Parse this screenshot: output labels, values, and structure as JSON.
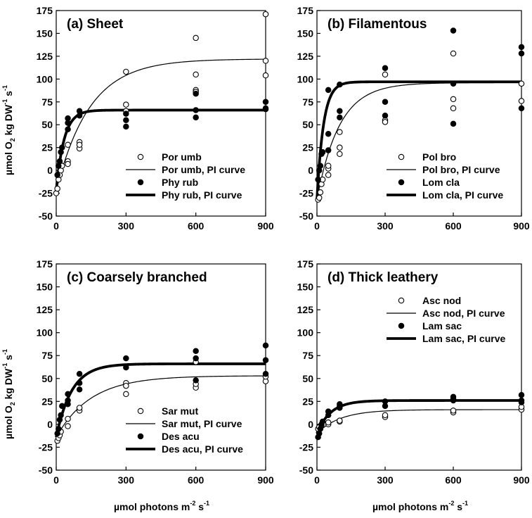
{
  "figure": {
    "ylabel": {
      "pre": "µmol O",
      "sub": "2",
      "mid": " kg DW",
      "sup1": "-1",
      "gap": " s",
      "sup2": "-1"
    },
    "xlabel": {
      "pre": "µmol photons m",
      "sup1": "-2",
      "gap": " s",
      "sup2": "-1"
    }
  },
  "chart_data": [
    {
      "type": "scatter",
      "title": "(a) Sheet",
      "xlim": [
        0,
        900
      ],
      "ylim": [
        -50,
        175
      ],
      "xticks": [
        0,
        300,
        600,
        900
      ],
      "yticks": [
        -50,
        -25,
        0,
        25,
        50,
        75,
        100,
        125,
        150,
        175
      ],
      "legend_position": "bottom-right",
      "series": [
        {
          "name": "Por umb",
          "kind": "points",
          "marker": "open",
          "points": [
            [
              0,
              -25
            ],
            [
              5,
              -20
            ],
            [
              10,
              -10
            ],
            [
              15,
              -5
            ],
            [
              20,
              0
            ],
            [
              25,
              5
            ],
            [
              50,
              10
            ],
            [
              50,
              7
            ],
            [
              50,
              28
            ],
            [
              100,
              24
            ],
            [
              100,
              31
            ],
            [
              100,
              28
            ],
            [
              300,
              108
            ],
            [
              300,
              72
            ],
            [
              300,
              65
            ],
            [
              600,
              145
            ],
            [
              600,
              105
            ],
            [
              600,
              88
            ],
            [
              600,
              86
            ],
            [
              900,
              171
            ],
            [
              900,
              120
            ],
            [
              900,
              104
            ]
          ]
        },
        {
          "name": "Por umb, PI curve",
          "kind": "curve",
          "pmax": 122,
          "rd": -22,
          "alpha": 1.0
        },
        {
          "name": "Phy rub",
          "kind": "points",
          "marker": "filled",
          "points": [
            [
              5,
              -5
            ],
            [
              10,
              5
            ],
            [
              15,
              10
            ],
            [
              20,
              20
            ],
            [
              25,
              25
            ],
            [
              50,
              45
            ],
            [
              50,
              52
            ],
            [
              50,
              57
            ],
            [
              100,
              65
            ],
            [
              100,
              60
            ],
            [
              300,
              48
            ],
            [
              300,
              55
            ],
            [
              300,
              62
            ],
            [
              600,
              84
            ],
            [
              600,
              66
            ],
            [
              600,
              58
            ],
            [
              900,
              68
            ],
            [
              900,
              75
            ],
            [
              900,
              67
            ]
          ]
        },
        {
          "name": "Phy rub, PI curve",
          "kind": "curve",
          "pmax": 66,
          "rd": -22,
          "alpha": 2.6
        }
      ]
    },
    {
      "type": "scatter",
      "title": "(b) Filamentous",
      "xlim": [
        0,
        900
      ],
      "ylim": [
        -50,
        175
      ],
      "xticks": [
        0,
        300,
        600,
        900
      ],
      "yticks": [
        -50,
        -25,
        0,
        25,
        50,
        75,
        100,
        125,
        150,
        175
      ],
      "legend_position": "bottom-right",
      "series": [
        {
          "name": "Pol bro",
          "kind": "points",
          "marker": "open",
          "points": [
            [
              5,
              -32
            ],
            [
              10,
              -30
            ],
            [
              15,
              -24
            ],
            [
              20,
              -15
            ],
            [
              25,
              -10
            ],
            [
              50,
              -5
            ],
            [
              50,
              2
            ],
            [
              50,
              5
            ],
            [
              100,
              18
            ],
            [
              100,
              25
            ],
            [
              100,
              42
            ],
            [
              300,
              55
            ],
            [
              300,
              53
            ],
            [
              300,
              105
            ],
            [
              600,
              128
            ],
            [
              600,
              78
            ],
            [
              600,
              68
            ],
            [
              900,
              95
            ],
            [
              900,
              76
            ]
          ]
        },
        {
          "name": "Pol bro, PI curve",
          "kind": "curve",
          "pmax": 96,
          "rd": -32,
          "alpha": 1.3
        },
        {
          "name": "Lom cla",
          "kind": "points",
          "marker": "filled",
          "points": [
            [
              5,
              -10
            ],
            [
              10,
              0
            ],
            [
              15,
              5
            ],
            [
              20,
              18
            ],
            [
              25,
              20
            ],
            [
              50,
              22
            ],
            [
              50,
              40
            ],
            [
              50,
              88
            ],
            [
              100,
              65
            ],
            [
              100,
              58
            ],
            [
              100,
              94
            ],
            [
              300,
              112
            ],
            [
              300,
              75
            ],
            [
              300,
              60
            ],
            [
              600,
              153
            ],
            [
              600,
              95
            ],
            [
              600,
              51
            ],
            [
              900,
              135
            ],
            [
              900,
              128
            ],
            [
              900,
              68
            ]
          ]
        },
        {
          "name": "Lom cla, PI curve",
          "kind": "curve",
          "pmax": 97,
          "rd": -32,
          "alpha": 4.5
        }
      ]
    },
    {
      "type": "scatter",
      "title": "(c) Coarsely branched",
      "xlim": [
        0,
        900
      ],
      "ylim": [
        -50,
        175
      ],
      "xticks": [
        0,
        300,
        600,
        900
      ],
      "yticks": [
        -50,
        -25,
        0,
        25,
        50,
        75,
        100,
        125,
        150,
        175
      ],
      "legend_position": "bottom-right",
      "series": [
        {
          "name": "Sar mut",
          "kind": "points",
          "marker": "open",
          "points": [
            [
              5,
              -18
            ],
            [
              10,
              -15
            ],
            [
              15,
              -12
            ],
            [
              20,
              -8
            ],
            [
              50,
              -2
            ],
            [
              50,
              6
            ],
            [
              100,
              15
            ],
            [
              100,
              18
            ],
            [
              300,
              33
            ],
            [
              300,
              45
            ],
            [
              300,
              42
            ],
            [
              600,
              40
            ],
            [
              600,
              44
            ],
            [
              600,
              68
            ],
            [
              900,
              47
            ],
            [
              900,
              52
            ]
          ]
        },
        {
          "name": "Sar mut, PI curve",
          "kind": "curve",
          "pmax": 53,
          "rd": -14,
          "alpha": 0.45
        },
        {
          "name": "Des acu",
          "kind": "points",
          "marker": "filled",
          "points": [
            [
              5,
              -10
            ],
            [
              10,
              -5
            ],
            [
              15,
              5
            ],
            [
              20,
              10
            ],
            [
              25,
              20
            ],
            [
              50,
              22
            ],
            [
              50,
              33
            ],
            [
              50,
              26
            ],
            [
              100,
              55
            ],
            [
              100,
              45
            ],
            [
              100,
              38
            ],
            [
              300,
              72
            ],
            [
              300,
              62
            ],
            [
              600,
              80
            ],
            [
              600,
              72
            ],
            [
              600,
              48
            ],
            [
              900,
              86
            ],
            [
              900,
              70
            ],
            [
              900,
              55
            ]
          ]
        },
        {
          "name": "Des acu, PI curve",
          "kind": "curve",
          "pmax": 66,
          "rd": -14,
          "alpha": 1.2
        }
      ]
    },
    {
      "type": "scatter",
      "title": "(d) Thick leathery",
      "xlim": [
        0,
        900
      ],
      "ylim": [
        -50,
        175
      ],
      "xticks": [
        0,
        300,
        600,
        900
      ],
      "yticks": [
        -50,
        -25,
        0,
        25,
        50,
        75,
        100,
        125,
        150,
        175
      ],
      "legend_position": "top-right",
      "series": [
        {
          "name": "Asc nod",
          "kind": "points",
          "marker": "open",
          "points": [
            [
              5,
              -5
            ],
            [
              10,
              -3
            ],
            [
              20,
              -1
            ],
            [
              50,
              0
            ],
            [
              50,
              2
            ],
            [
              100,
              3
            ],
            [
              100,
              4
            ],
            [
              300,
              8
            ],
            [
              300,
              10
            ],
            [
              600,
              13
            ],
            [
              600,
              15
            ],
            [
              900,
              16
            ],
            [
              900,
              19
            ]
          ]
        },
        {
          "name": "Asc nod, PI curve",
          "kind": "curve",
          "pmax": 16,
          "rd": -10,
          "alpha": 0.25
        },
        {
          "name": "Lam sac",
          "kind": "points",
          "marker": "filled",
          "points": [
            [
              5,
              -14
            ],
            [
              10,
              -10
            ],
            [
              15,
              -5
            ],
            [
              20,
              0
            ],
            [
              25,
              3
            ],
            [
              50,
              10
            ],
            [
              50,
              14
            ],
            [
              100,
              20
            ],
            [
              100,
              18
            ],
            [
              100,
              22
            ],
            [
              300,
              25
            ],
            [
              300,
              20
            ],
            [
              600,
              28
            ],
            [
              600,
              26
            ],
            [
              600,
              30
            ],
            [
              900,
              32
            ],
            [
              900,
              26
            ],
            [
              900,
              24
            ]
          ]
        },
        {
          "name": "Lam sac, PI curve",
          "kind": "curve",
          "pmax": 26,
          "rd": -10,
          "alpha": 0.6
        }
      ]
    }
  ]
}
